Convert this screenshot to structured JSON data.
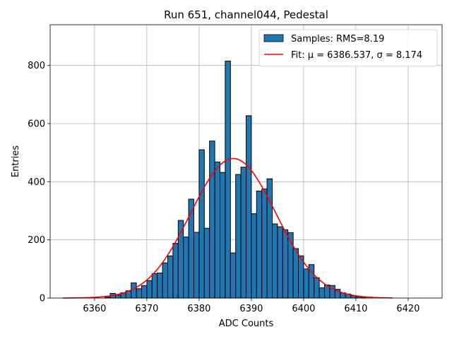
{
  "chart_data": {
    "type": "bar",
    "title": "Run 651, channel044, Pedestal",
    "xlabel": "ADC Counts",
    "ylabel": "Entries",
    "xlim": [
      6351.5,
      6426.5
    ],
    "ylim": [
      0,
      940
    ],
    "xticks": [
      6360,
      6370,
      6380,
      6390,
      6400,
      6410,
      6420
    ],
    "yticks": [
      0,
      200,
      400,
      600,
      800
    ],
    "grid": true,
    "legend_position": "top-right",
    "series": [
      {
        "name": "Samples: RMS=8.19",
        "kind": "histogram",
        "color": "#1f77b4",
        "edge_color": "#000000",
        "bins": [
          6362,
          6363,
          6364,
          6365,
          6366,
          6367,
          6368,
          6369,
          6370,
          6371,
          6372,
          6373,
          6374,
          6375,
          6376,
          6377,
          6378,
          6379,
          6380,
          6381,
          6382,
          6383,
          6384,
          6385,
          6386,
          6387,
          6388,
          6389,
          6390,
          6391,
          6392,
          6393,
          6394,
          6395,
          6396,
          6397,
          6398,
          6399,
          6400,
          6401,
          6402,
          6403,
          6404,
          6405,
          6406,
          6407,
          6408,
          6409,
          6410,
          6411
        ],
        "values": [
          3,
          16,
          10,
          18,
          25,
          52,
          32,
          43,
          60,
          84,
          86,
          121,
          145,
          188,
          267,
          210,
          340,
          226,
          510,
          240,
          540,
          468,
          432,
          815,
          155,
          425,
          450,
          627,
          290,
          368,
          375,
          410,
          255,
          245,
          235,
          225,
          170,
          145,
          100,
          115,
          70,
          35,
          45,
          43,
          30,
          18,
          14,
          8,
          5,
          2
        ]
      },
      {
        "name": "Fit: μ = 6386.537, σ = 8.174",
        "kind": "gaussian",
        "color": "#ff0000",
        "mu": 6386.537,
        "sigma": 8.174,
        "peak": 480,
        "x_range": [
          6354.0,
          6417.0
        ]
      }
    ]
  }
}
